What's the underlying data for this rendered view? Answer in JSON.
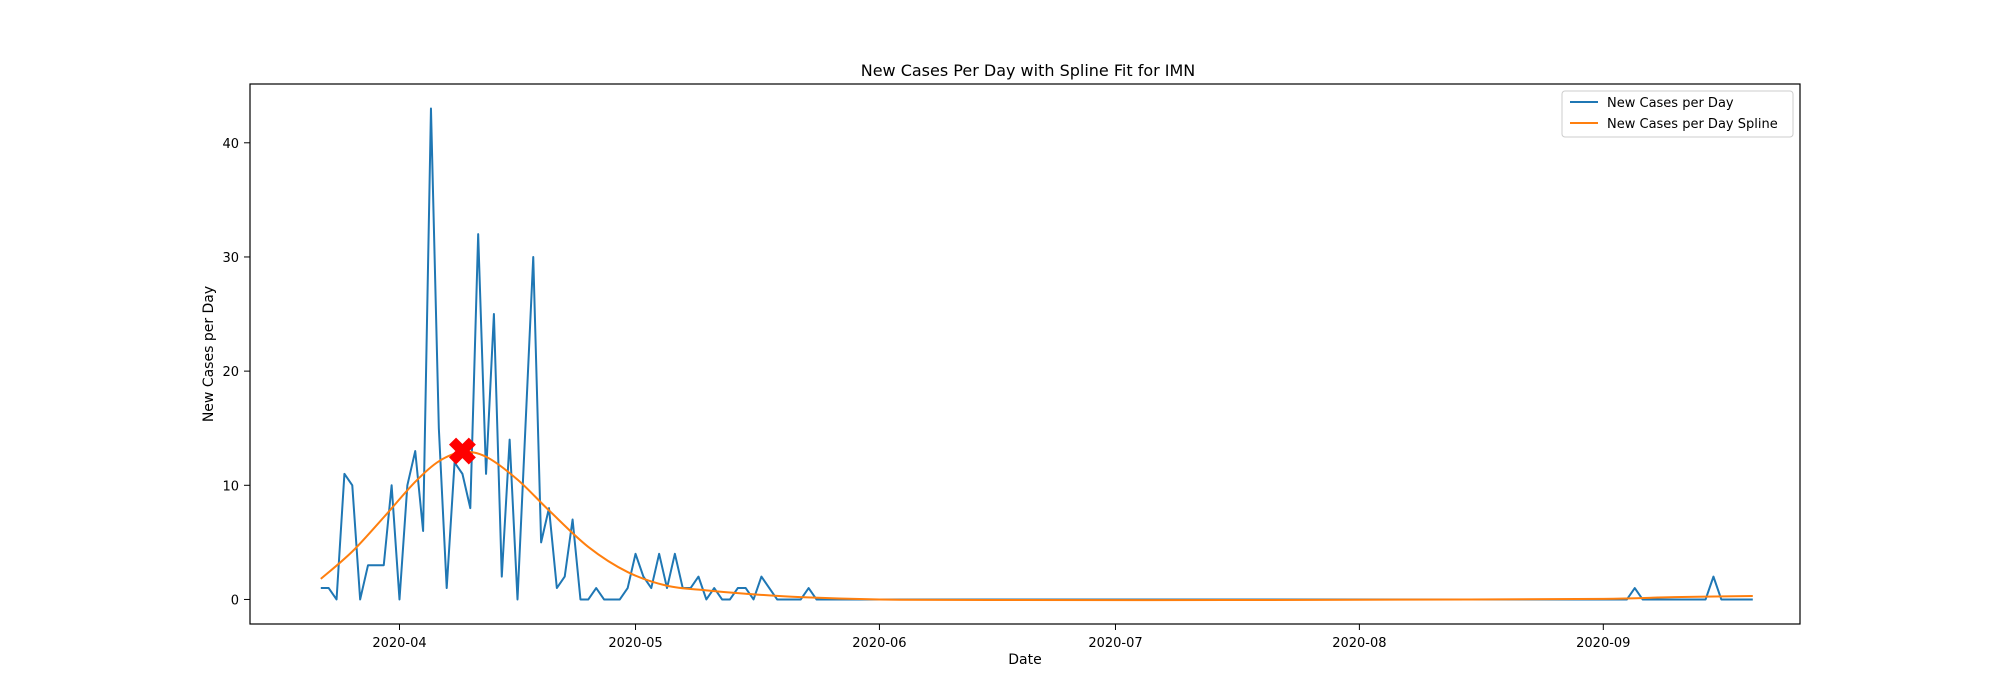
{
  "chart_data": {
    "type": "line",
    "title": "New Cases Per Day with Spline Fit for IMN",
    "xlabel": "Date",
    "ylabel": "New Cases per Day",
    "xlim": [
      "2020-03-13",
      "2020-09-26"
    ],
    "ylim": [
      -2.15,
      45.15
    ],
    "x_ticks": [
      "2020-04",
      "2020-05",
      "2020-06",
      "2020-07",
      "2020-08",
      "2020-09"
    ],
    "x_tick_dates": [
      "2020-04-01",
      "2020-05-01",
      "2020-06-01",
      "2020-07-01",
      "2020-08-01",
      "2020-09-01"
    ],
    "y_ticks": [
      0,
      10,
      20,
      30,
      40
    ],
    "grid": false,
    "legend_position": "top-right",
    "series": [
      {
        "name": "New Cases per Day",
        "color": "#1f77b4",
        "start_date": "2020-03-22",
        "end_date": "2020-09-20",
        "values": [
          1,
          1,
          0,
          11,
          10,
          0,
          3,
          3,
          3,
          10,
          0,
          10,
          13,
          6,
          43,
          15,
          1,
          12,
          11,
          8,
          32,
          11,
          25,
          2,
          14,
          0,
          15,
          30,
          5,
          8,
          1,
          2,
          7,
          0,
          0,
          1,
          0,
          0,
          0,
          1,
          4,
          2,
          1,
          4,
          1,
          4,
          1,
          1,
          2,
          0,
          1,
          0,
          0,
          1,
          1,
          0,
          2,
          1,
          0,
          0,
          0,
          0,
          1,
          0,
          0,
          0,
          0,
          0,
          0,
          0,
          0,
          0,
          0,
          0,
          0,
          0,
          0,
          0,
          0,
          0,
          0,
          0,
          0,
          0,
          0,
          0,
          0,
          0,
          0,
          0,
          0,
          0,
          0,
          0,
          0,
          0,
          0,
          0,
          0,
          0,
          0,
          0,
          0,
          0,
          0,
          0,
          0,
          0,
          0,
          0,
          0,
          0,
          0,
          0,
          0,
          0,
          0,
          0,
          0,
          0,
          0,
          0,
          0,
          0,
          0,
          0,
          0,
          0,
          0,
          0,
          0,
          0,
          0,
          0,
          0,
          0,
          0,
          0,
          0,
          0,
          0,
          0,
          0,
          0,
          0,
          0,
          0,
          0,
          0,
          0,
          0,
          0,
          0,
          0,
          0,
          0,
          0,
          0,
          0,
          0,
          0,
          0,
          0,
          0,
          0,
          0,
          0,
          1,
          0,
          0,
          0,
          0,
          0,
          0,
          0,
          0,
          0,
          2,
          0,
          0,
          0,
          0,
          0
        ]
      },
      {
        "name": "New Cases per Day Spline",
        "color": "#ff7f0e",
        "points": [
          [
            "2020-03-22",
            1.8
          ],
          [
            "2020-03-26",
            4.2
          ],
          [
            "2020-03-30",
            7.2
          ],
          [
            "2020-04-03",
            10.3
          ],
          [
            "2020-04-06",
            12.1
          ],
          [
            "2020-04-09",
            12.9
          ],
          [
            "2020-04-12",
            12.5
          ],
          [
            "2020-04-16",
            10.5
          ],
          [
            "2020-04-20",
            7.8
          ],
          [
            "2020-04-25",
            4.6
          ],
          [
            "2020-04-30",
            2.4
          ],
          [
            "2020-05-05",
            1.2
          ],
          [
            "2020-05-10",
            0.8
          ],
          [
            "2020-05-15",
            0.5
          ],
          [
            "2020-05-22",
            0.2
          ],
          [
            "2020-06-01",
            0.0
          ],
          [
            "2020-06-15",
            -0.05
          ],
          [
            "2020-07-15",
            -0.05
          ],
          [
            "2020-08-15",
            0.0
          ],
          [
            "2020-09-01",
            0.05
          ],
          [
            "2020-09-10",
            0.2
          ],
          [
            "2020-09-20",
            0.3
          ]
        ]
      }
    ],
    "peak_marker": {
      "date": "2020-04-09",
      "value": 13,
      "color": "#ff0000",
      "marker": "X"
    }
  }
}
